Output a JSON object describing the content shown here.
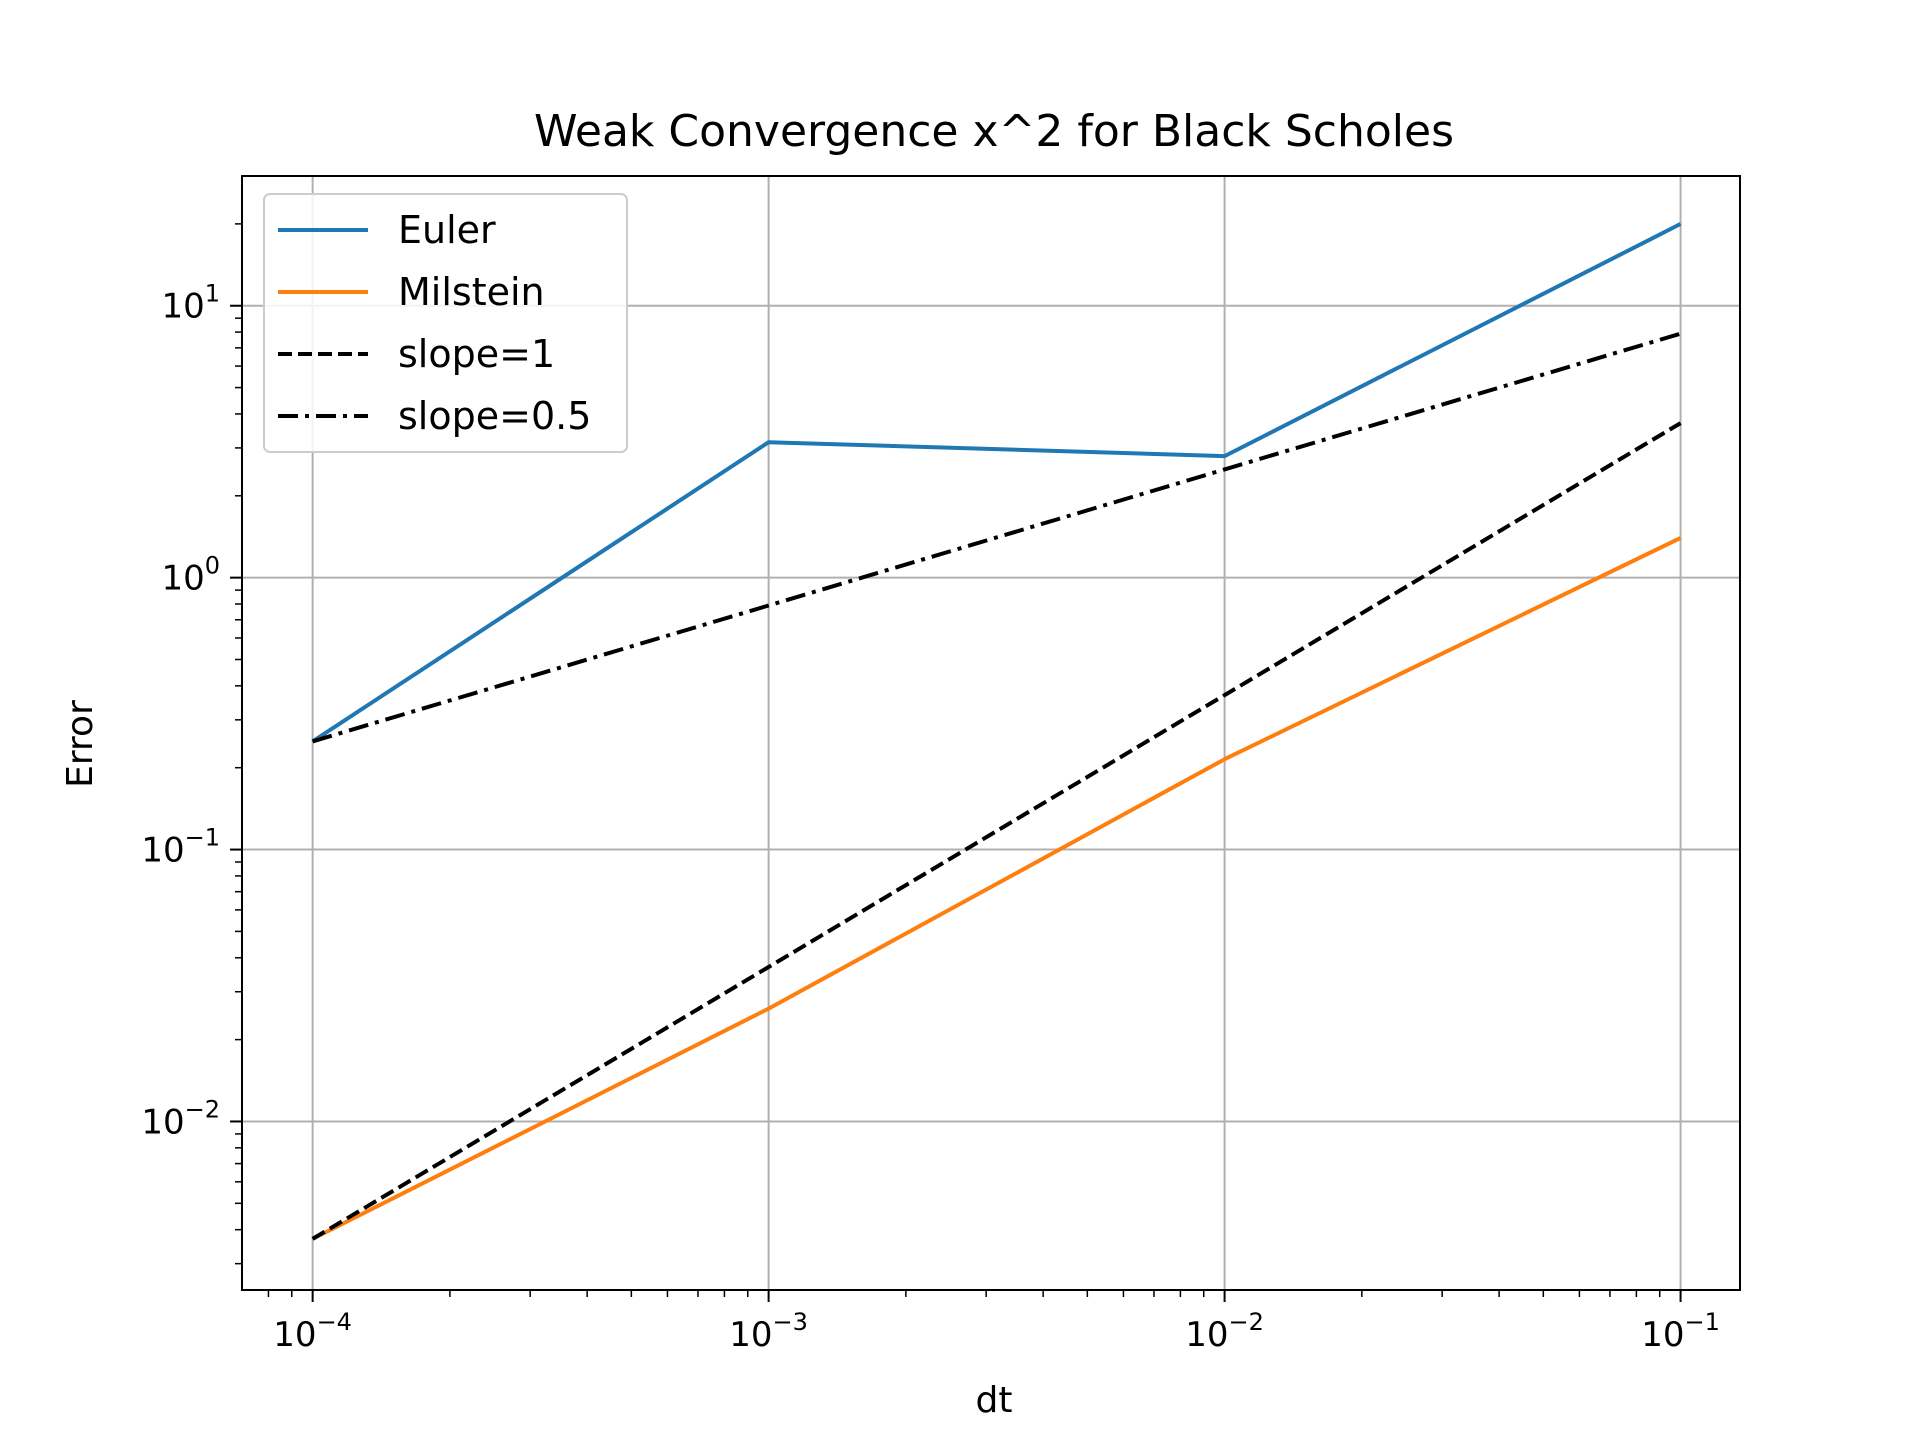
{
  "chart_data": {
    "type": "line",
    "title": "Weak Convergence x^2 for Black Scholes",
    "xlabel": "dt",
    "ylabel": "Error",
    "xscale": "log",
    "yscale": "log",
    "xlim": [
      7e-05,
      0.135
    ],
    "ylim": [
      0.0024,
      30
    ],
    "grid": true,
    "legend_position": "top-left",
    "x_ticks": [
      {
        "value": 0.0001,
        "base": "10",
        "exp": "−4"
      },
      {
        "value": 0.001,
        "base": "10",
        "exp": "−3"
      },
      {
        "value": 0.01,
        "base": "10",
        "exp": "−2"
      },
      {
        "value": 0.1,
        "base": "10",
        "exp": "−1"
      }
    ],
    "y_ticks": [
      {
        "value": 0.01,
        "base": "10",
        "exp": "−2"
      },
      {
        "value": 0.1,
        "base": "10",
        "exp": "−1"
      },
      {
        "value": 1,
        "base": "10",
        "exp": "0"
      },
      {
        "value": 10,
        "base": "10",
        "exp": "1"
      }
    ],
    "x": [
      0.0001,
      0.001,
      0.01,
      0.1
    ],
    "series": [
      {
        "name": "Euler",
        "color": "#1f77b4",
        "dash": "solid",
        "values": [
          0.25,
          3.15,
          2.8,
          20
        ]
      },
      {
        "name": "Milstein",
        "color": "#ff7f0e",
        "dash": "solid",
        "values": [
          0.0037,
          0.026,
          0.215,
          1.4
        ]
      },
      {
        "name": "slope=1",
        "color": "#000000",
        "dash": "dashed",
        "values": [
          0.0037,
          0.037,
          0.37,
          3.7
        ]
      },
      {
        "name": "slope=0.5",
        "color": "#000000",
        "dash": "dashdot",
        "values": [
          0.25,
          0.79,
          2.5,
          7.9
        ]
      }
    ]
  }
}
